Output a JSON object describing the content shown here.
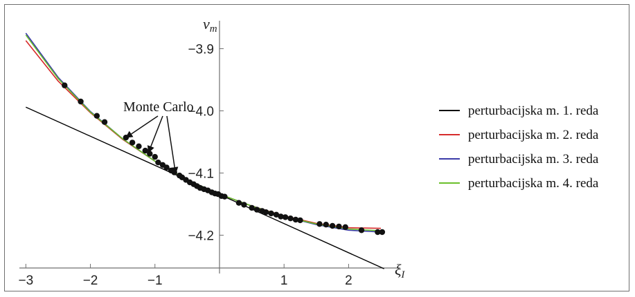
{
  "chart_data": {
    "type": "line",
    "xlabel": "ξ",
    "xlabel_sub": "I",
    "ylabel": "v",
    "ylabel_sub": "m",
    "xlim": [
      -3.1,
      2.8
    ],
    "ylim": [
      -4.255,
      -3.855
    ],
    "grid": false,
    "legend_position": "right",
    "x_ticks": [
      -3,
      -2,
      -1,
      1,
      2
    ],
    "x_tick_labels": [
      "−3",
      "−2",
      "−1",
      "1",
      "2"
    ],
    "y_ticks": [
      -3.9,
      -4.0,
      -4.1,
      -4.2
    ],
    "y_tick_labels": [
      "−3.9",
      "−4.0",
      "−4.1",
      "−4.2"
    ],
    "series": [
      {
        "name": "perturbacijska m. 1. reda",
        "color": "#000000",
        "x": [
          -3,
          2.55
        ],
        "y": [
          -3.994,
          -4.254
        ]
      },
      {
        "name": "perturbacijska m. 2. reda",
        "color": "#d62b2b",
        "x": [
          -3.0,
          -2.5,
          -2.0,
          -1.5,
          -1.0,
          -0.5,
          0.0,
          0.5,
          1.0,
          1.5,
          2.0,
          2.5
        ],
        "y": [
          -3.887,
          -3.952,
          -4.003,
          -4.046,
          -4.081,
          -4.111,
          -4.134,
          -4.153,
          -4.169,
          -4.181,
          -4.188,
          -4.189
        ]
      },
      {
        "name": "perturbacijska m. 3. reda",
        "color": "#3a3aa8",
        "x": [
          -3.0,
          -2.5,
          -2.0,
          -1.5,
          -1.0,
          -0.5,
          0.0,
          0.5,
          1.0,
          1.5,
          2.0,
          2.5
        ],
        "y": [
          -3.875,
          -3.946,
          -4.001,
          -4.045,
          -4.081,
          -4.111,
          -4.134,
          -4.153,
          -4.17,
          -4.183,
          -4.192,
          -4.195
        ]
      },
      {
        "name": "perturbacijska m. 4. reda",
        "color": "#6abf2a",
        "x": [
          -3.0,
          -2.5,
          -2.0,
          -1.5,
          -1.0,
          -0.5,
          0.0,
          0.5,
          1.0,
          1.5,
          2.0,
          2.5
        ],
        "y": [
          -3.878,
          -3.948,
          -4.002,
          -4.045,
          -4.081,
          -4.111,
          -4.134,
          -4.153,
          -4.17,
          -4.182,
          -4.19,
          -4.193
        ]
      }
    ],
    "monte_carlo": {
      "x": [
        -2.4,
        -2.15,
        -1.9,
        -1.78,
        -1.45,
        -1.35,
        -1.25,
        -1.15,
        -1.08,
        -1.0,
        -0.95,
        -0.88,
        -0.82,
        -0.75,
        -0.7,
        -0.62,
        -0.58,
        -0.52,
        -0.46,
        -0.4,
        -0.35,
        -0.3,
        -0.24,
        -0.18,
        -0.12,
        -0.07,
        -0.02,
        0.03,
        0.08,
        0.3,
        0.38,
        0.5,
        0.58,
        0.66,
        0.72,
        0.8,
        0.88,
        0.95,
        1.02,
        1.1,
        1.18,
        1.25,
        1.55,
        1.65,
        1.75,
        1.85,
        1.95,
        2.2,
        2.45,
        2.52
      ],
      "y": [
        -3.959,
        -3.985,
        -4.008,
        -4.018,
        -4.043,
        -4.051,
        -4.057,
        -4.064,
        -4.069,
        -4.074,
        -4.083,
        -4.087,
        -4.091,
        -4.096,
        -4.099,
        -4.104,
        -4.107,
        -4.111,
        -4.115,
        -4.118,
        -4.121,
        -4.124,
        -4.126,
        -4.128,
        -4.131,
        -4.133,
        -4.134,
        -4.137,
        -4.138,
        -4.148,
        -4.151,
        -4.156,
        -4.159,
        -4.161,
        -4.163,
        -4.165,
        -4.167,
        -4.17,
        -4.171,
        -4.173,
        -4.175,
        -4.176,
        -4.182,
        -4.183,
        -4.185,
        -4.186,
        -4.187,
        -4.192,
        -4.195,
        -4.195
      ]
    },
    "annotation": {
      "text": "Monte Carlo",
      "pointer_targets": [
        {
          "x": -1.45,
          "y": -4.043
        },
        {
          "x": -1.1,
          "y": -4.067
        },
        {
          "x": -0.68,
          "y": -4.101
        }
      ]
    }
  },
  "legend": {
    "items": [
      {
        "label": "perturbacijska m. 1. reda",
        "color": "#000000"
      },
      {
        "label": "perturbacijska m. 2. reda",
        "color": "#d62b2b"
      },
      {
        "label": "perturbacijska m. 3. reda",
        "color": "#3a3aa8"
      },
      {
        "label": "perturbacijska m. 4. reda",
        "color": "#6abf2a"
      }
    ]
  }
}
